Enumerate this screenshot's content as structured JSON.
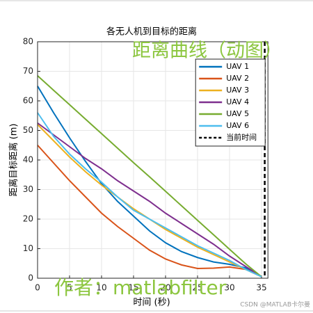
{
  "chart_data": {
    "type": "line",
    "title": "各无人机到目标的距离",
    "x_label": "时间 (秒)",
    "y_label": "距离目标距离 (m)",
    "x": [
      0,
      2.5,
      5,
      7.5,
      10,
      12.5,
      15,
      17.5,
      20,
      22.5,
      25,
      27.5,
      30,
      32.5,
      35
    ],
    "series": [
      {
        "name": "UAV 1",
        "color": "#0072BD",
        "values": [
          65,
          56,
          47.5,
          39.5,
          32,
          26,
          21,
          16,
          12,
          9,
          7,
          5.5,
          4.7,
          3.5,
          0.5
        ]
      },
      {
        "name": "UAV 2",
        "color": "#D95319",
        "values": [
          45,
          39,
          33,
          27.5,
          22,
          17.5,
          13.5,
          9.5,
          6.5,
          4.5,
          3.3,
          3.4,
          3.8,
          3,
          0.5
        ]
      },
      {
        "name": "UAV 3",
        "color": "#EDB120",
        "values": [
          52,
          46.5,
          41,
          36,
          31.5,
          27.5,
          23.5,
          20,
          16.5,
          13.5,
          10.5,
          8,
          5.5,
          3,
          0.5
        ]
      },
      {
        "name": "UAV 4",
        "color": "#7E2F8E",
        "values": [
          52.5,
          48.5,
          44.5,
          40.5,
          37,
          33,
          29.5,
          26,
          22,
          18.5,
          15,
          11.5,
          7.5,
          4,
          0.5
        ]
      },
      {
        "name": "UAV 5",
        "color": "#77AC30",
        "values": [
          68.5,
          63.6,
          58.7,
          53.8,
          48.9,
          44,
          39.1,
          34.3,
          29.4,
          24.5,
          19.6,
          14.7,
          9.8,
          4.9,
          0.5
        ]
      },
      {
        "name": "UAV 6",
        "color": "#4DBEEE",
        "values": [
          56,
          48,
          42,
          37,
          32.5,
          27.5,
          23,
          20,
          17,
          14,
          11,
          8.5,
          6,
          3,
          0.5
        ]
      }
    ],
    "current_time": {
      "name": "当前时间",
      "x": 35.5,
      "color": "#000000"
    },
    "xlim": [
      0,
      36
    ],
    "ylim": [
      0,
      80
    ],
    "xticks": [
      0,
      5,
      10,
      15,
      20,
      25,
      30,
      35
    ],
    "yticks": [
      0,
      10,
      20,
      30,
      40,
      50,
      60,
      70,
      80
    ],
    "grid": true,
    "legend": "top-right",
    "annotations": [
      "距离曲线（动图）",
      "作者：matlabfilter"
    ],
    "watermark": "CSDN @MATLAB卡尔曼"
  }
}
